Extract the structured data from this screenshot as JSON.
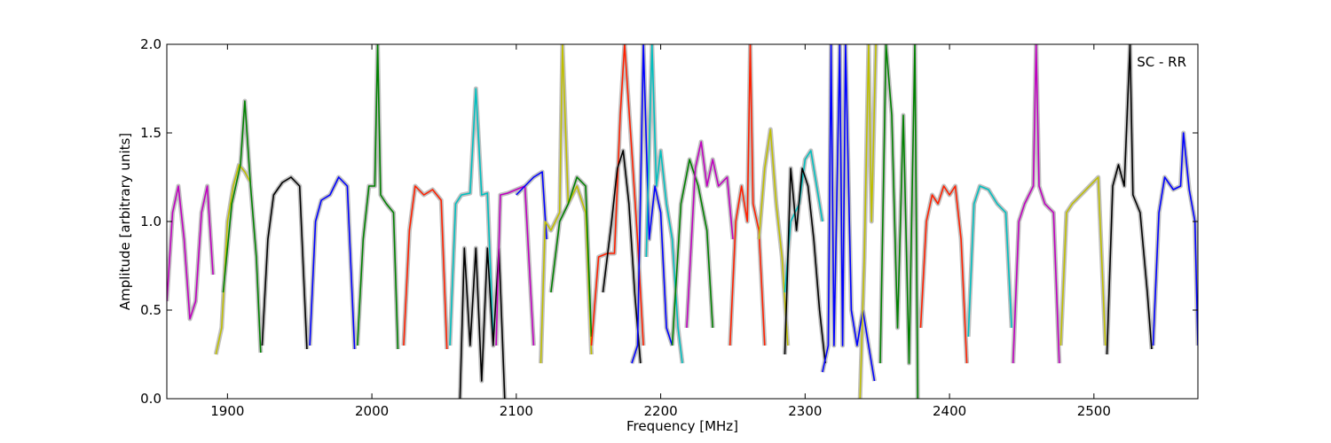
{
  "chart_data": {
    "type": "line",
    "title": "",
    "annotation": "SC - RR",
    "xlabel": "Frequency [MHz]",
    "ylabel": "Amplitude [arbitrary units]",
    "xlim": [
      1858,
      2572
    ],
    "ylim": [
      0,
      2.0
    ],
    "x_ticks": [
      1900,
      2000,
      2100,
      2200,
      2300,
      2400,
      2500
    ],
    "y_ticks": [
      0.0,
      0.5,
      1.0,
      1.5,
      2.0
    ],
    "y_tick_labels": [
      "0.0",
      "0.5",
      "1.0",
      "1.5",
      "2.0"
    ],
    "grid": false,
    "legend": "none",
    "band_color": "#c0c0c0",
    "series": [
      {
        "color": "#bf00bf",
        "x": [
          1858,
          1862,
          1866,
          1870,
          1874,
          1878,
          1882,
          1886,
          1890
        ],
        "y": [
          0.55,
          1.05,
          1.2,
          0.9,
          0.45,
          0.55,
          1.05,
          1.2,
          0.7
        ]
      },
      {
        "color": "#bfbf00",
        "x": [
          1892,
          1896,
          1900,
          1904,
          1908,
          1912,
          1916
        ],
        "y": [
          0.25,
          0.4,
          1.0,
          1.2,
          1.32,
          1.28,
          1.22
        ]
      },
      {
        "color": "#008000",
        "x": [
          1897,
          1903,
          1909,
          1912,
          1916,
          1920,
          1923
        ],
        "y": [
          0.6,
          1.1,
          1.32,
          1.68,
          1.2,
          0.8,
          0.26
        ]
      },
      {
        "color": "#000000",
        "x": [
          1924,
          1928,
          1932,
          1938,
          1944,
          1950,
          1955
        ],
        "y": [
          0.3,
          0.9,
          1.15,
          1.22,
          1.25,
          1.2,
          0.28
        ]
      },
      {
        "color": "#0000ff",
        "x": [
          1957,
          1961,
          1965,
          1971,
          1977,
          1983,
          1988
        ],
        "y": [
          0.3,
          1.0,
          1.12,
          1.15,
          1.25,
          1.2,
          0.28
        ]
      },
      {
        "color": "#008000",
        "x": [
          1990,
          1994,
          1998,
          2002,
          2004,
          2006,
          2010,
          2015,
          2018
        ],
        "y": [
          0.3,
          0.9,
          1.2,
          1.2,
          2.0,
          1.15,
          1.1,
          1.05,
          0.28
        ]
      },
      {
        "color": "#ff2000",
        "x": [
          2022,
          2026,
          2030,
          2036,
          2042,
          2048,
          2052
        ],
        "y": [
          0.3,
          0.95,
          1.2,
          1.15,
          1.18,
          1.12,
          0.28
        ]
      },
      {
        "color": "#00bfbf",
        "x": [
          2054,
          2058,
          2062,
          2068,
          2072,
          2076,
          2080,
          2084
        ],
        "y": [
          0.3,
          1.1,
          1.15,
          1.16,
          1.75,
          1.15,
          1.16,
          0.35
        ]
      },
      {
        "color": "#000000",
        "x": [
          2061,
          2064,
          2068,
          2072,
          2076,
          2080,
          2084,
          2088,
          2092
        ],
        "y": [
          0.0,
          0.85,
          0.3,
          0.85,
          0.1,
          0.85,
          0.3,
          0.85,
          0.0
        ]
      },
      {
        "color": "#bf00bf",
        "x": [
          2086,
          2089,
          2094,
          2100,
          2106,
          2112
        ],
        "y": [
          0.3,
          1.15,
          1.16,
          1.18,
          1.2,
          0.3
        ]
      },
      {
        "color": "#0000ff",
        "x": [
          2100,
          2106,
          2112,
          2118,
          2121
        ],
        "y": [
          1.15,
          1.2,
          1.25,
          1.28,
          0.9
        ]
      },
      {
        "color": "#bfbf00",
        "x": [
          2117,
          2120,
          2124,
          2130,
          2132,
          2136,
          2142,
          2148,
          2152
        ],
        "y": [
          0.2,
          1.0,
          0.95,
          1.05,
          2.0,
          1.1,
          1.2,
          1.05,
          0.25
        ]
      },
      {
        "color": "#008000",
        "x": [
          2124,
          2130,
          2136,
          2142,
          2148,
          2152
        ],
        "y": [
          0.6,
          1.0,
          1.1,
          1.25,
          1.2,
          0.35
        ]
      },
      {
        "color": "#ff2000",
        "x": [
          2152,
          2157,
          2163,
          2168,
          2172,
          2175,
          2180,
          2184,
          2188
        ],
        "y": [
          0.3,
          0.8,
          0.82,
          0.82,
          1.6,
          2.0,
          1.4,
          0.9,
          0.3
        ]
      },
      {
        "color": "#000000",
        "x": [
          2160,
          2166,
          2170,
          2174,
          2178,
          2182,
          2186
        ],
        "y": [
          0.6,
          1.0,
          1.3,
          1.4,
          1.1,
          0.6,
          0.2
        ]
      },
      {
        "color": "#0000ff",
        "x": [
          2180,
          2184,
          2188,
          2192,
          2196,
          2200,
          2204,
          2208
        ],
        "y": [
          0.2,
          0.3,
          2.0,
          0.9,
          1.2,
          1.05,
          0.4,
          0.3
        ]
      },
      {
        "color": "#00bfbf",
        "x": [
          2190,
          2194,
          2197,
          2200,
          2204,
          2208,
          2212,
          2215
        ],
        "y": [
          0.8,
          2.0,
          1.2,
          1.4,
          1.1,
          0.9,
          0.4,
          0.2
        ]
      },
      {
        "color": "#008000",
        "x": [
          2208,
          2214,
          2220,
          2226,
          2232,
          2236
        ],
        "y": [
          0.3,
          1.1,
          1.35,
          1.2,
          0.95,
          0.4
        ]
      },
      {
        "color": "#bf00bf",
        "x": [
          2218,
          2224,
          2228,
          2232,
          2236,
          2240,
          2246,
          2250
        ],
        "y": [
          0.4,
          1.3,
          1.45,
          1.2,
          1.35,
          1.2,
          1.25,
          0.9
        ]
      },
      {
        "color": "#ff2000",
        "x": [
          2248,
          2252,
          2256,
          2260,
          2262,
          2264,
          2268,
          2272
        ],
        "y": [
          0.3,
          1.0,
          1.2,
          1.0,
          2.0,
          1.1,
          0.95,
          0.3
        ]
      },
      {
        "color": "#bfbf00",
        "x": [
          2268,
          2272,
          2276,
          2280,
          2284,
          2288
        ],
        "y": [
          0.9,
          1.3,
          1.52,
          1.1,
          0.8,
          0.3
        ]
      },
      {
        "color": "#00bfbf",
        "x": [
          2286,
          2290,
          2296,
          2300,
          2304,
          2308,
          2312
        ],
        "y": [
          0.6,
          1.0,
          1.1,
          1.35,
          1.4,
          1.2,
          1.0
        ]
      },
      {
        "color": "#000000",
        "x": [
          2286,
          2290,
          2294,
          2298,
          2302,
          2306,
          2310,
          2314
        ],
        "y": [
          0.25,
          1.3,
          0.95,
          1.3,
          1.2,
          0.9,
          0.5,
          0.2
        ]
      },
      {
        "color": "#0000ff",
        "x": [
          2312,
          2316,
          2318,
          2320,
          2324,
          2326,
          2328,
          2332,
          2336,
          2340,
          2344,
          2348
        ],
        "y": [
          0.15,
          0.3,
          2.0,
          0.3,
          2.0,
          0.3,
          2.0,
          0.5,
          0.3,
          0.5,
          0.3,
          0.1
        ]
      },
      {
        "color": "#bfbf00",
        "x": [
          2338,
          2341,
          2344,
          2346,
          2349
        ],
        "y": [
          0.0,
          0.8,
          2.0,
          1.0,
          2.0
        ]
      },
      {
        "color": "#008000",
        "x": [
          2352,
          2356,
          2360,
          2364,
          2368,
          2372,
          2376,
          2378
        ],
        "y": [
          0.2,
          2.0,
          1.6,
          0.4,
          1.6,
          0.2,
          2.0,
          0.0
        ]
      },
      {
        "color": "#ff2000",
        "x": [
          2380,
          2384,
          2388,
          2392,
          2396,
          2400,
          2404,
          2408,
          2412
        ],
        "y": [
          0.4,
          1.0,
          1.15,
          1.1,
          1.2,
          1.15,
          1.2,
          0.9,
          0.2
        ]
      },
      {
        "color": "#00bfbf",
        "x": [
          2413,
          2417,
          2421,
          2427,
          2433,
          2439,
          2443
        ],
        "y": [
          0.35,
          1.1,
          1.2,
          1.18,
          1.1,
          1.05,
          0.4
        ]
      },
      {
        "color": "#bf00bf",
        "x": [
          2444,
          2448,
          2452,
          2458,
          2460,
          2462,
          2466,
          2472,
          2476
        ],
        "y": [
          0.2,
          1.0,
          1.1,
          1.2,
          2.0,
          1.2,
          1.1,
          1.05,
          0.2
        ]
      },
      {
        "color": "#bfbf00",
        "x": [
          2477,
          2481,
          2485,
          2491,
          2497,
          2503,
          2508
        ],
        "y": [
          0.3,
          1.05,
          1.1,
          1.15,
          1.2,
          1.25,
          0.3
        ]
      },
      {
        "color": "#000000",
        "x": [
          2509,
          2513,
          2517,
          2521,
          2525,
          2527,
          2532,
          2537,
          2540
        ],
        "y": [
          0.25,
          1.2,
          1.32,
          1.2,
          2.0,
          1.15,
          1.05,
          0.6,
          0.28
        ]
      },
      {
        "color": "#0000ff",
        "x": [
          2541,
          2545,
          2549,
          2555,
          2560,
          2562,
          2566,
          2570,
          2572
        ],
        "y": [
          0.3,
          1.05,
          1.25,
          1.18,
          1.2,
          1.5,
          1.18,
          1.0,
          0.3
        ]
      }
    ]
  }
}
